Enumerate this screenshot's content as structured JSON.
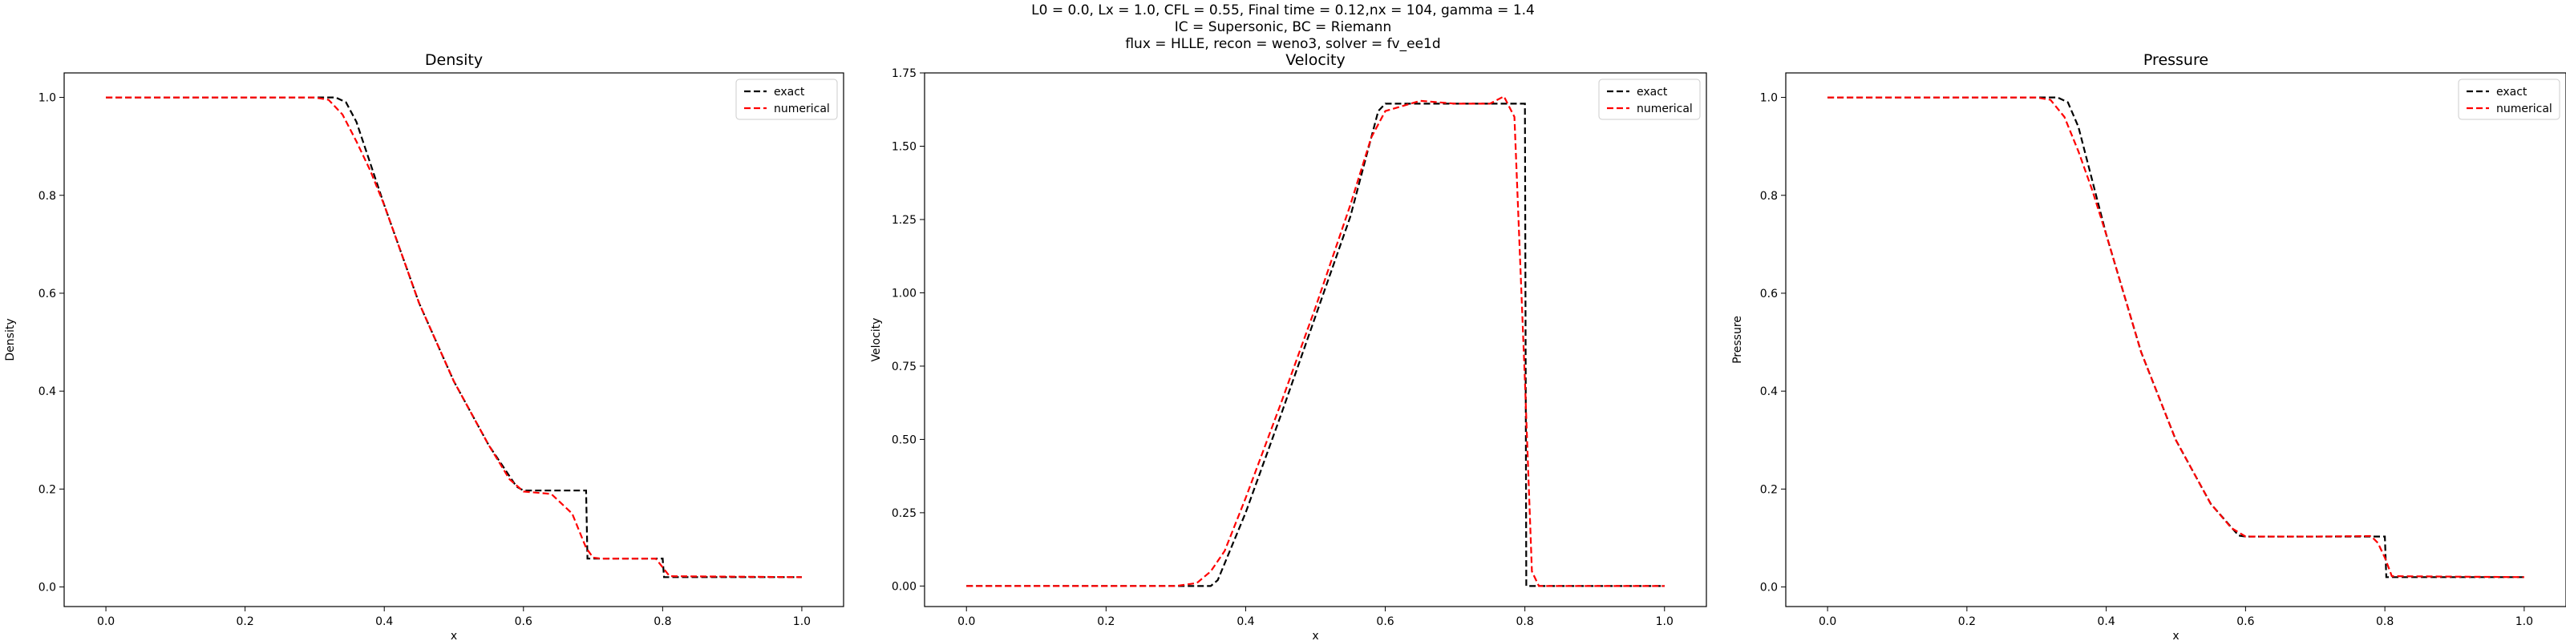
{
  "suptitle": [
    "L0 = 0.0, Lx = 1.0, CFL = 0.55, Final time = 0.12,nx = 104, gamma = 1.4",
    "IC = Supersonic, BC = Riemann",
    "flux = HLLE, recon = weno3, solver = fv_ee1d"
  ],
  "chart_data": [
    {
      "type": "line",
      "title": "Density",
      "xlabel": "x",
      "ylabel": "Density",
      "xlim": [
        -0.06,
        1.06
      ],
      "ylim": [
        -0.04,
        1.05
      ],
      "xticks": [
        0.0,
        0.2,
        0.4,
        0.6,
        0.8,
        1.0
      ],
      "xtick_labels": [
        "0.0",
        "0.2",
        "0.4",
        "0.6",
        "0.8",
        "1.0"
      ],
      "yticks": [
        0.0,
        0.2,
        0.4,
        0.6,
        0.8,
        1.0
      ],
      "ytick_labels": [
        "0.0",
        "0.2",
        "0.4",
        "0.6",
        "0.8",
        "1.0"
      ],
      "legend": "top-right",
      "grid": false,
      "series": [
        {
          "name": "exact",
          "color": "#000000",
          "dash": "dashed",
          "x": [
            0.0,
            0.33,
            0.345,
            0.36,
            0.4,
            0.45,
            0.5,
            0.55,
            0.59,
            0.6,
            0.69,
            0.692,
            0.8,
            0.802,
            1.0
          ],
          "y": [
            1.0,
            1.0,
            0.99,
            0.95,
            0.78,
            0.58,
            0.42,
            0.29,
            0.205,
            0.197,
            0.197,
            0.058,
            0.058,
            0.02,
            0.02
          ]
        },
        {
          "name": "numerical",
          "color": "#ff0000",
          "dash": "dashed",
          "x": [
            0.0,
            0.3,
            0.32,
            0.34,
            0.36,
            0.38,
            0.4,
            0.45,
            0.5,
            0.55,
            0.58,
            0.6,
            0.64,
            0.67,
            0.69,
            0.7,
            0.71,
            0.79,
            0.8,
            0.81,
            1.0
          ],
          "y": [
            1.0,
            1.0,
            0.995,
            0.965,
            0.91,
            0.85,
            0.78,
            0.58,
            0.42,
            0.29,
            0.22,
            0.195,
            0.19,
            0.15,
            0.08,
            0.06,
            0.058,
            0.058,
            0.04,
            0.022,
            0.02
          ]
        }
      ]
    },
    {
      "type": "line",
      "title": "Velocity",
      "xlabel": "x",
      "ylabel": "Velocity",
      "xlim": [
        -0.06,
        1.06
      ],
      "ylim": [
        -0.07,
        1.75
      ],
      "xticks": [
        0.0,
        0.2,
        0.4,
        0.6,
        0.8,
        1.0
      ],
      "xtick_labels": [
        "0.0",
        "0.2",
        "0.4",
        "0.6",
        "0.8",
        "1.0"
      ],
      "yticks": [
        0.0,
        0.25,
        0.5,
        0.75,
        1.0,
        1.25,
        1.5,
        1.75
      ],
      "ytick_labels": [
        "0.00",
        "0.25",
        "0.50",
        "0.75",
        "1.00",
        "1.25",
        "1.50",
        "1.75"
      ],
      "legend": "top-right",
      "grid": false,
      "series": [
        {
          "name": "exact",
          "color": "#000000",
          "dash": "dashed",
          "x": [
            0.0,
            0.35,
            0.36,
            0.4,
            0.45,
            0.5,
            0.55,
            0.59,
            0.6,
            0.8,
            0.802,
            1.0
          ],
          "y": [
            0.0,
            0.0,
            0.02,
            0.25,
            0.58,
            0.92,
            1.26,
            1.62,
            1.645,
            1.645,
            0.0,
            0.0
          ]
        },
        {
          "name": "numerical",
          "color": "#ff0000",
          "dash": "dashed",
          "x": [
            0.0,
            0.3,
            0.33,
            0.35,
            0.37,
            0.4,
            0.45,
            0.5,
            0.55,
            0.58,
            0.6,
            0.65,
            0.7,
            0.75,
            0.77,
            0.785,
            0.8,
            0.81,
            0.82,
            1.0
          ],
          "y": [
            0.0,
            0.0,
            0.01,
            0.05,
            0.12,
            0.3,
            0.62,
            0.95,
            1.3,
            1.53,
            1.62,
            1.655,
            1.645,
            1.645,
            1.67,
            1.6,
            0.7,
            0.05,
            0.0,
            0.0
          ]
        }
      ]
    },
    {
      "type": "line",
      "title": "Pressure",
      "xlabel": "x",
      "ylabel": "Pressure",
      "xlim": [
        -0.06,
        1.06
      ],
      "ylim": [
        -0.04,
        1.05
      ],
      "xticks": [
        0.0,
        0.2,
        0.4,
        0.6,
        0.8,
        1.0
      ],
      "xtick_labels": [
        "0.0",
        "0.2",
        "0.4",
        "0.6",
        "0.8",
        "1.0"
      ],
      "yticks": [
        0.0,
        0.2,
        0.4,
        0.6,
        0.8,
        1.0
      ],
      "ytick_labels": [
        "0.0",
        "0.2",
        "0.4",
        "0.6",
        "0.8",
        "1.0"
      ],
      "legend": "top-right",
      "grid": false,
      "series": [
        {
          "name": "exact",
          "color": "#000000",
          "dash": "dashed",
          "x": [
            0.0,
            0.33,
            0.345,
            0.36,
            0.4,
            0.45,
            0.5,
            0.55,
            0.59,
            0.6,
            0.8,
            0.802,
            1.0
          ],
          "y": [
            1.0,
            1.0,
            0.99,
            0.94,
            0.72,
            0.48,
            0.3,
            0.17,
            0.105,
            0.103,
            0.103,
            0.02,
            0.02
          ]
        },
        {
          "name": "numerical",
          "color": "#ff0000",
          "dash": "dashed",
          "x": [
            0.0,
            0.3,
            0.32,
            0.34,
            0.36,
            0.38,
            0.4,
            0.45,
            0.5,
            0.55,
            0.58,
            0.6,
            0.7,
            0.78,
            0.79,
            0.8,
            0.81,
            1.0
          ],
          "y": [
            1.0,
            1.0,
            0.995,
            0.96,
            0.89,
            0.81,
            0.72,
            0.48,
            0.3,
            0.17,
            0.12,
            0.103,
            0.103,
            0.104,
            0.09,
            0.06,
            0.022,
            0.02
          ]
        }
      ]
    }
  ]
}
